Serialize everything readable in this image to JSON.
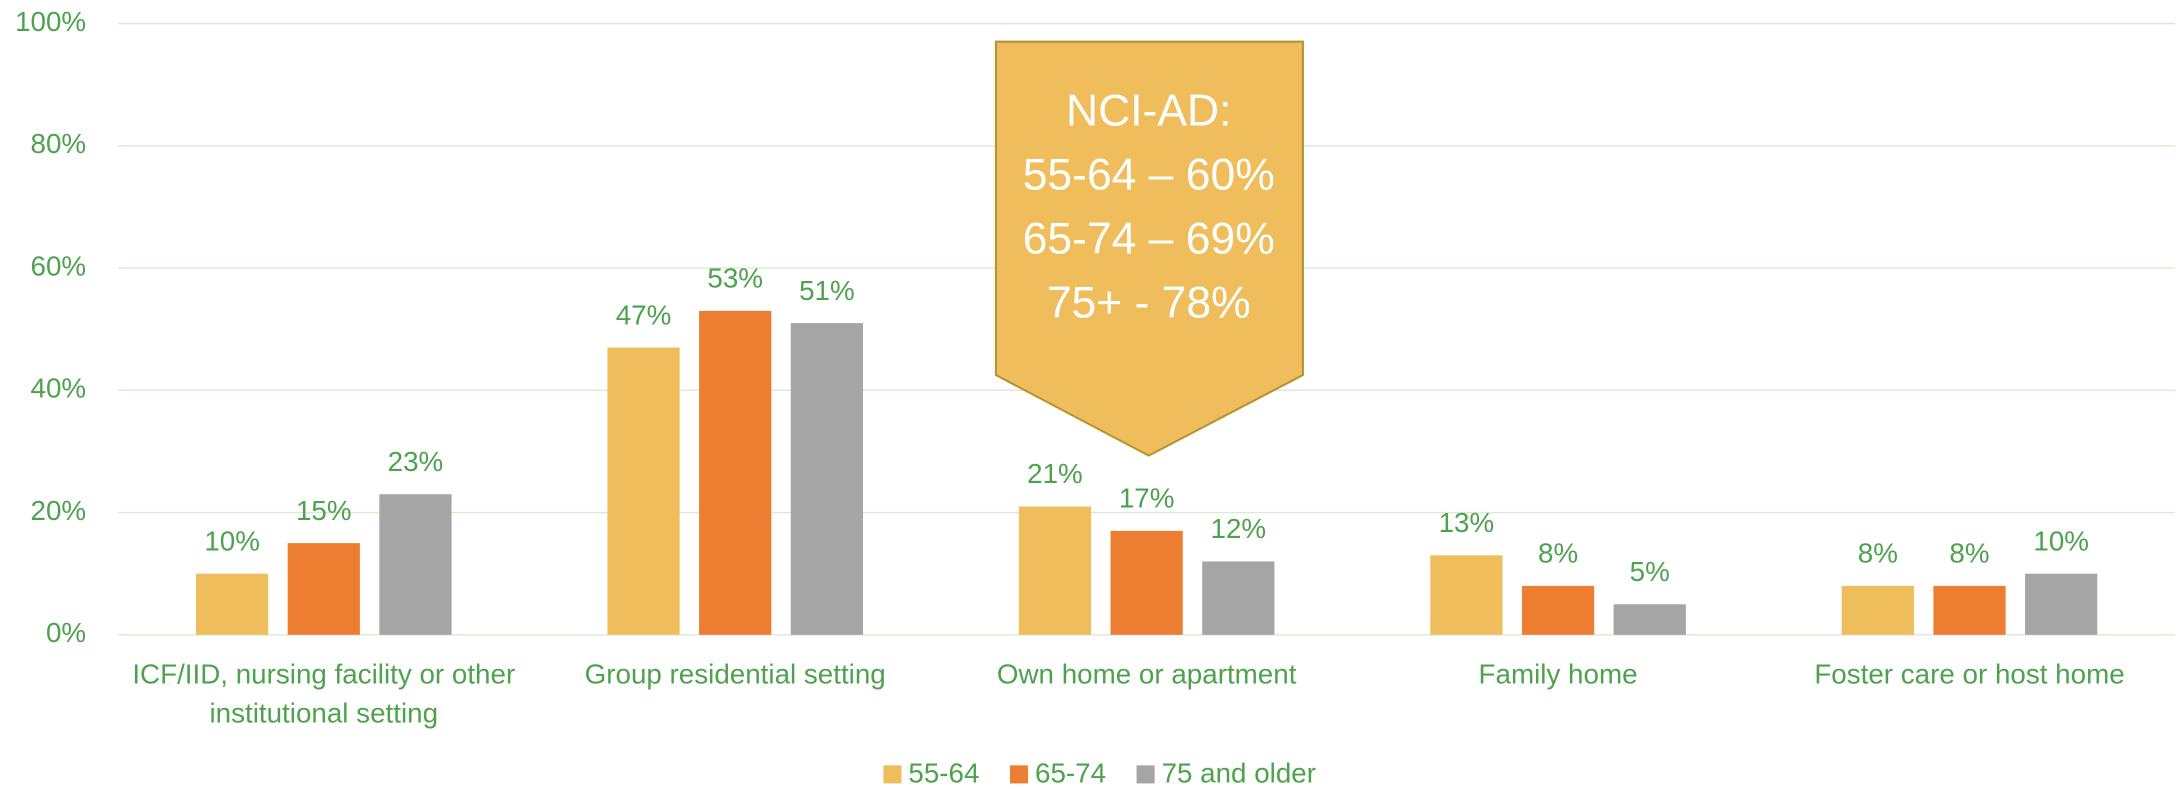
{
  "chart_data": {
    "type": "bar",
    "categories": [
      "ICF/IID, nursing facility or other institutional setting",
      "Group residential setting",
      "Own home or apartment",
      "Family home",
      "Foster care or host home"
    ],
    "series": [
      {
        "name": "55-64",
        "color": "#f0bd5c",
        "values": [
          10,
          47,
          21,
          13,
          8
        ],
        "value_labels": [
          "10%",
          "47%",
          "21%",
          "13%",
          "8%"
        ]
      },
      {
        "name": "65-74",
        "color": "#ed7d31",
        "values": [
          15,
          53,
          17,
          8,
          8
        ],
        "value_labels": [
          "15%",
          "53%",
          "17%",
          "8%",
          "8%"
        ]
      },
      {
        "name": "75 and older",
        "color": "#a5a5a5",
        "values": [
          23,
          51,
          12,
          5,
          10
        ],
        "value_labels": [
          "23%",
          "51%",
          "12%",
          "5%",
          "10%"
        ]
      }
    ],
    "ylim": [
      0,
      100
    ],
    "yticks": [
      {
        "value": 0,
        "label": "0%"
      },
      {
        "value": 20,
        "label": "20%"
      },
      {
        "value": 40,
        "label": "40%"
      },
      {
        "value": 60,
        "label": "60%"
      },
      {
        "value": 80,
        "label": "80%"
      },
      {
        "value": 100,
        "label": "100%"
      }
    ],
    "grid": true,
    "legend": "bottom",
    "annotation": {
      "lines": [
        "NCI-AD:",
        "55-64 – 60%",
        "65-74 – 69%",
        "75+ - 78%"
      ],
      "color": "#f0bd5c"
    }
  }
}
